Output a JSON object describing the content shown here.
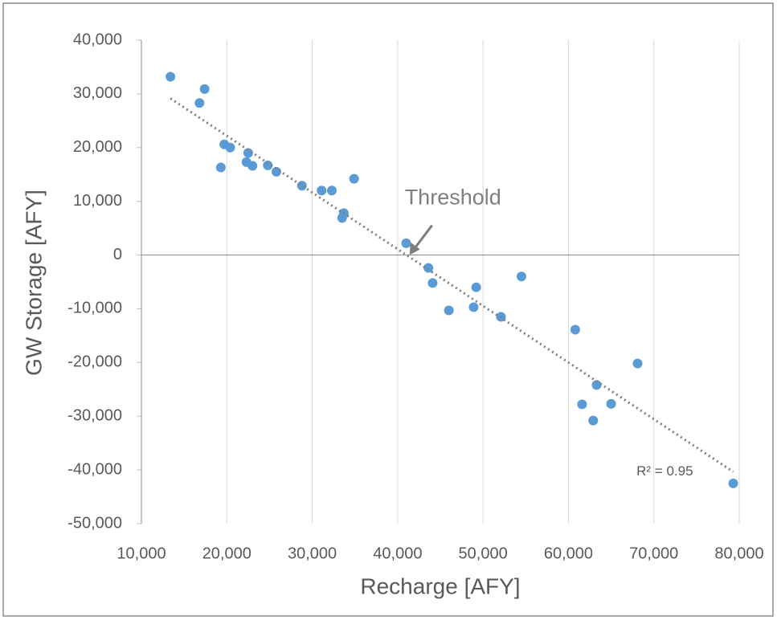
{
  "chart_data": {
    "type": "scatter",
    "x_label": "Recharge [AFY]",
    "y_label": "GW Storage [AFY]",
    "x": [
      13400,
      17400,
      16800,
      19700,
      20400,
      19300,
      22500,
      22300,
      23000,
      24800,
      25800,
      28800,
      31100,
      32300,
      34900,
      33700,
      33500,
      41000,
      43600,
      44100,
      46000,
      48900,
      49200,
      52100,
      54500,
      60800,
      68100,
      63300,
      61600,
      65000,
      62900,
      79300
    ],
    "values": [
      33200,
      30900,
      28300,
      20600,
      20000,
      16300,
      19000,
      17300,
      16600,
      16700,
      15500,
      12900,
      12000,
      12000,
      14200,
      7800,
      6900,
      2200,
      -2400,
      -5200,
      -10300,
      -9700,
      -6000,
      -11500,
      -4000,
      -13900,
      -20200,
      -24200,
      -27800,
      -27700,
      -30800,
      -42500
    ],
    "color": "#5b9bd5",
    "trendline": {
      "x": [
        13400,
        79300
      ],
      "y": [
        29150,
        -40360
      ],
      "color": "#7f7f7f",
      "label": "R² = 0.95"
    },
    "annotation": {
      "text": "Threshold",
      "x": 41400,
      "y": 0
    },
    "xlim": [
      10000,
      80000
    ],
    "xticks": [
      {
        "value": 10000,
        "label": "10,000"
      },
      {
        "value": 20000,
        "label": "20,000"
      },
      {
        "value": 30000,
        "label": "30,000"
      },
      {
        "value": 40000,
        "label": "40,000"
      },
      {
        "value": 50000,
        "label": "50,000"
      },
      {
        "value": 60000,
        "label": "60,000"
      },
      {
        "value": 70000,
        "label": "70,000"
      },
      {
        "value": 80000,
        "label": "80,000"
      }
    ],
    "ylim": [
      -50000,
      40000
    ],
    "yticks": [
      {
        "value": 40000,
        "label": "40,000"
      },
      {
        "value": 30000,
        "label": "30,000"
      },
      {
        "value": 20000,
        "label": "20,000"
      },
      {
        "value": 10000,
        "label": "10,000"
      },
      0,
      {
        "value": -10000,
        "label": "-10,000"
      },
      {
        "value": -20000,
        "label": "-20,000"
      },
      {
        "value": -30000,
        "label": "-30,000"
      },
      {
        "value": -40000,
        "label": "-40,000"
      },
      {
        "value": -50000,
        "label": "-50,000"
      }
    ],
    "grid": true
  }
}
